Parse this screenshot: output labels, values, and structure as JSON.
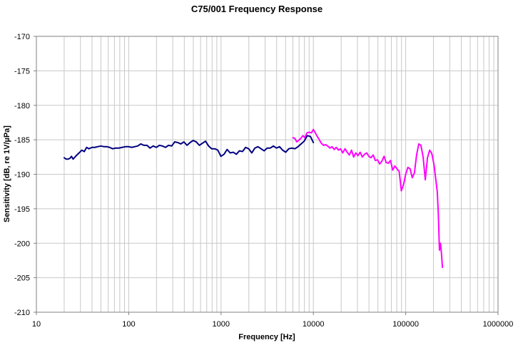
{
  "chart_data": {
    "type": "line",
    "title": "C75/001 Frequency Response",
    "xlabel": "Frequency [Hz]",
    "ylabel": "Sensitivity [dB, re 1V/µPa]",
    "x_scale": "log",
    "xlim": [
      10,
      1000000
    ],
    "ylim": [
      -210,
      -170
    ],
    "x_ticks": [
      10,
      100,
      1000,
      10000,
      100000,
      1000000
    ],
    "x_tick_labels": [
      "10",
      "100",
      "1000",
      "10000",
      "100000",
      "1000000"
    ],
    "y_ticks": [
      -170,
      -175,
      -180,
      -185,
      -190,
      -195,
      -200,
      -205,
      -210
    ],
    "y_tick_labels": [
      "-170",
      "-175",
      "-180",
      "-185",
      "-190",
      "-195",
      "-200",
      "-205",
      "-210"
    ],
    "grid": true,
    "legend": "none",
    "series": [
      {
        "color": "#000080",
        "x": [
          20,
          21,
          22,
          23,
          24,
          25,
          27,
          29,
          31,
          33,
          35,
          37,
          40,
          43,
          46,
          50,
          54,
          58,
          62,
          67,
          72,
          78,
          85,
          92,
          100,
          108,
          116,
          125,
          135,
          146,
          158,
          170,
          184,
          199,
          215,
          232,
          250,
          270,
          292,
          315,
          340,
          367,
          396,
          428,
          462,
          499,
          539,
          582,
          629,
          679,
          733,
          792,
          855,
          923,
          997,
          1077,
          1163,
          1256,
          1356,
          1465,
          1582,
          1708,
          1845,
          1992,
          2152,
          2324,
          2509,
          2710,
          2927,
          3161,
          3413,
          3686,
          3981,
          4299,
          4643,
          5014,
          5415,
          5848,
          6315,
          6820,
          7365,
          7954,
          8590,
          9277,
          10000
        ],
        "y": [
          -187.6,
          -187.8,
          -187.8,
          -187.7,
          -187.4,
          -187.8,
          -187.3,
          -186.9,
          -186.5,
          -186.7,
          -186.1,
          -186.3,
          -186.1,
          -186.1,
          -186.0,
          -185.9,
          -186.0,
          -186.0,
          -186.1,
          -186.3,
          -186.2,
          -186.2,
          -186.1,
          -186.0,
          -186.0,
          -186.1,
          -186.0,
          -185.9,
          -185.6,
          -185.8,
          -185.8,
          -186.2,
          -185.9,
          -186.1,
          -185.8,
          -185.9,
          -186.1,
          -185.8,
          -185.9,
          -185.3,
          -185.4,
          -185.6,
          -185.3,
          -185.8,
          -185.4,
          -185.1,
          -185.3,
          -185.8,
          -185.5,
          -185.2,
          -185.9,
          -186.3,
          -186.3,
          -186.5,
          -187.4,
          -187.1,
          -186.4,
          -186.9,
          -186.8,
          -187.1,
          -186.6,
          -186.7,
          -186.1,
          -186.3,
          -186.9,
          -186.2,
          -186.0,
          -186.3,
          -186.6,
          -186.2,
          -186.2,
          -185.9,
          -186.2,
          -186.0,
          -186.5,
          -186.8,
          -186.3,
          -186.2,
          -186.3,
          -186.0,
          -185.6,
          -185.2,
          -184.4,
          -184.5,
          -185.4
        ]
      },
      {
        "color": "#FF00FF",
        "x": [
          6000,
          6300,
          6600,
          6900,
          7300,
          7700,
          8100,
          8500,
          9000,
          9500,
          10000,
          10500,
          11000,
          11600,
          12200,
          12900,
          13600,
          14300,
          15100,
          15900,
          16800,
          17700,
          18700,
          19700,
          20800,
          22000,
          23200,
          24500,
          25900,
          27300,
          28800,
          30400,
          32100,
          33900,
          35800,
          37800,
          39900,
          42100,
          44400,
          46900,
          49500,
          52300,
          55200,
          58300,
          61500,
          64900,
          68500,
          72300,
          76300,
          80500,
          85000,
          89700,
          94700,
          100000,
          105600,
          111500,
          117700,
          124300,
          131200,
          138500,
          146200,
          154400,
          163000,
          172100,
          181700,
          191800,
          202500,
          213800,
          220000,
          226000,
          232000,
          238000,
          244000,
          250000
        ],
        "y": [
          -184.7,
          -184.8,
          -185.3,
          -185.1,
          -184.8,
          -184.4,
          -184.7,
          -184.0,
          -183.9,
          -184.0,
          -183.5,
          -184.0,
          -184.5,
          -185.0,
          -185.5,
          -185.8,
          -185.7,
          -185.9,
          -186.2,
          -186.0,
          -186.4,
          -186.1,
          -186.5,
          -186.3,
          -186.9,
          -186.3,
          -186.8,
          -187.2,
          -186.5,
          -187.5,
          -186.9,
          -187.3,
          -186.8,
          -187.5,
          -187.1,
          -186.9,
          -187.4,
          -187.6,
          -187.2,
          -188.0,
          -187.9,
          -188.5,
          -188.1,
          -187.4,
          -188.3,
          -188.4,
          -188.0,
          -189.4,
          -188.8,
          -189.2,
          -189.6,
          -192.4,
          -191.5,
          -190.0,
          -189.0,
          -189.2,
          -190.5,
          -189.8,
          -187.2,
          -185.6,
          -185.8,
          -187.5,
          -190.8,
          -187.6,
          -186.5,
          -187.0,
          -188.6,
          -191.2,
          -192.6,
          -196.0,
          -201.0,
          -200.0,
          -201.5,
          -203.5
        ]
      }
    ]
  }
}
